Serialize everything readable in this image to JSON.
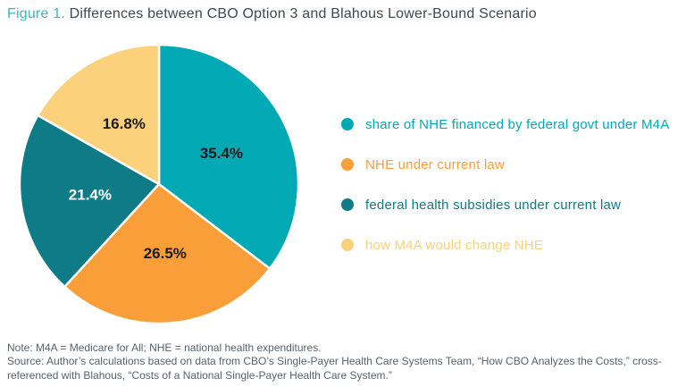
{
  "title": {
    "figure_label": "Figure 1.",
    "text": "Differences between CBO Option 3 and Blahous Lower-Bound Scenario"
  },
  "colors": {
    "figure_label": "#3FB5C4",
    "title_text": "#3E4850",
    "footer_text": "#58626B",
    "pie_separator": "#FFFFFF"
  },
  "chart_data": {
    "type": "pie",
    "title": "Differences between CBO Option 3 and Blahous Lower-Bound Scenario",
    "direction": "clockwise",
    "start_angle_deg": 0,
    "legend_position": "right",
    "slices": [
      {
        "label": "share of NHE financed by federal govt under M4A",
        "value": 35.4,
        "display": "35.4%",
        "color": "#00A9B4",
        "label_color": "#1B1B1B"
      },
      {
        "label": "NHE under current law",
        "value": 26.5,
        "display": "26.5%",
        "color": "#F99E38",
        "label_color": "#1B1B1B"
      },
      {
        "label": "federal health subsidies under current law",
        "value": 21.4,
        "display": "21.4%",
        "color": "#0E7B87",
        "label_color": "#FFFFFF"
      },
      {
        "label": "how M4A would change NHE",
        "value": 16.8,
        "display": "16.8%",
        "color": "#FBD17B",
        "label_color": "#1B1B1B"
      }
    ]
  },
  "footer": {
    "note": "Note: M4A = Medicare for All; NHE = national health expenditures.",
    "source": "Source: Author’s calculations based on data from CBO’s Single-Payer Health Care Systems Team, “How CBO Analyzes the Costs,” cross-referenced with Blahous, “Costs of a National Single-Payer Health Care System.”"
  }
}
